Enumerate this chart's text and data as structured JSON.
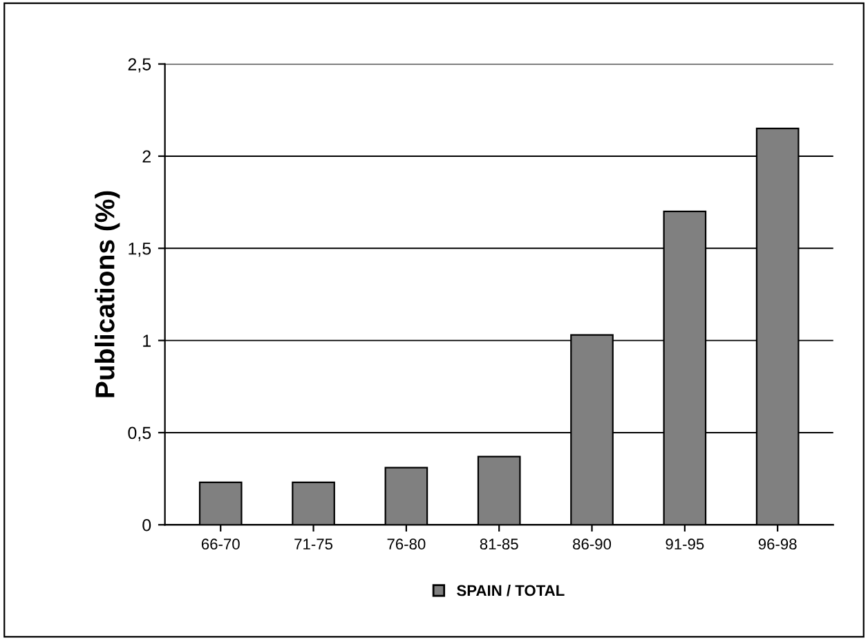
{
  "chart_data": {
    "type": "bar",
    "ylabel": "Publications (%)",
    "categories": [
      "66-70",
      "71-75",
      "76-80",
      "81-85",
      "86-90",
      "91-95",
      "96-98"
    ],
    "series": [
      {
        "name": "SPAIN / TOTAL",
        "color": "#808080",
        "values": [
          0.23,
          0.23,
          0.31,
          0.37,
          1.03,
          1.7,
          2.15
        ]
      }
    ],
    "ylim": [
      0,
      2.5
    ],
    "yticks": [
      0,
      {
        "value": 0.5,
        "label": "0,5"
      },
      1,
      {
        "value": 1.5,
        "label": "1,5"
      },
      2,
      {
        "value": 2.5,
        "label": "2,5"
      }
    ],
    "grid": "y",
    "legend": "bottom"
  }
}
